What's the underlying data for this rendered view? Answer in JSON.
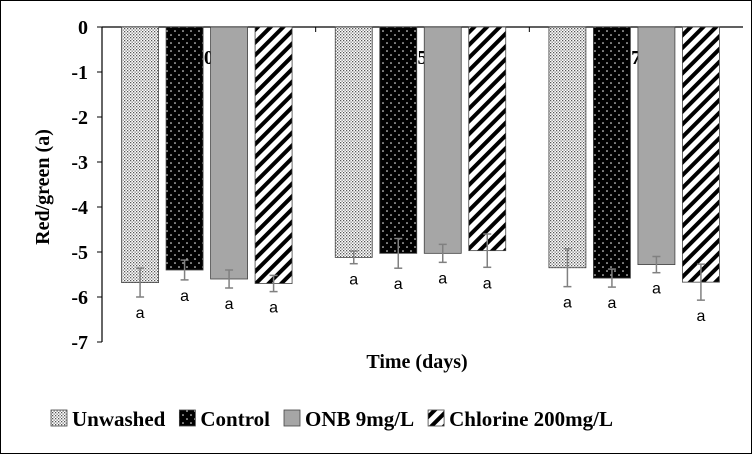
{
  "chart_data": {
    "type": "bar",
    "xlabel": "Time (days)",
    "ylabel": "Red/green (a)",
    "ylim": [
      -7,
      0
    ],
    "yticks": [
      0,
      -1,
      -2,
      -3,
      -4,
      -5,
      -6,
      -7
    ],
    "categories": [
      "0",
      "5",
      "7"
    ],
    "series": [
      {
        "name": "Unwashed",
        "pattern": "dots-dense",
        "values": [
          -5.68,
          -5.12,
          -5.35
        ],
        "errors": [
          0.32,
          0.14,
          0.42
        ],
        "labels": [
          "a",
          "a",
          "a"
        ]
      },
      {
        "name": "Control",
        "pattern": "black-dots",
        "values": [
          -5.4,
          -5.03,
          -5.58
        ],
        "errors": [
          0.22,
          0.33,
          0.2
        ],
        "labels": [
          "a",
          "a",
          "a"
        ]
      },
      {
        "name": "ONB 9mg/L",
        "pattern": "solid-gray",
        "values": [
          -5.6,
          -5.03,
          -5.28
        ],
        "errors": [
          0.2,
          0.2,
          0.18
        ],
        "labels": [
          "a",
          "a",
          "a"
        ]
      },
      {
        "name": "Chlorine 200mg/L",
        "pattern": "diagonal-stripes",
        "values": [
          -5.7,
          -4.97,
          -5.67
        ],
        "errors": [
          0.18,
          0.37,
          0.4
        ],
        "labels": [
          "a",
          "a",
          "a"
        ]
      }
    ],
    "grid": false,
    "legend_position": "bottom"
  }
}
